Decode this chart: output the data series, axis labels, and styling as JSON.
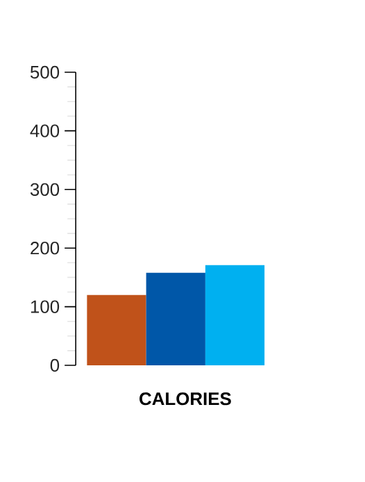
{
  "chart_data": {
    "type": "bar",
    "xlabel": "CALORIES",
    "categories": [
      null,
      null,
      null
    ],
    "values": [
      120,
      158,
      171
    ],
    "colors": [
      "#c0521a",
      "#0057a8",
      "#00b0f0"
    ],
    "ylim": [
      0,
      500
    ],
    "yticks": [
      0,
      100,
      200,
      300,
      400,
      500
    ]
  }
}
